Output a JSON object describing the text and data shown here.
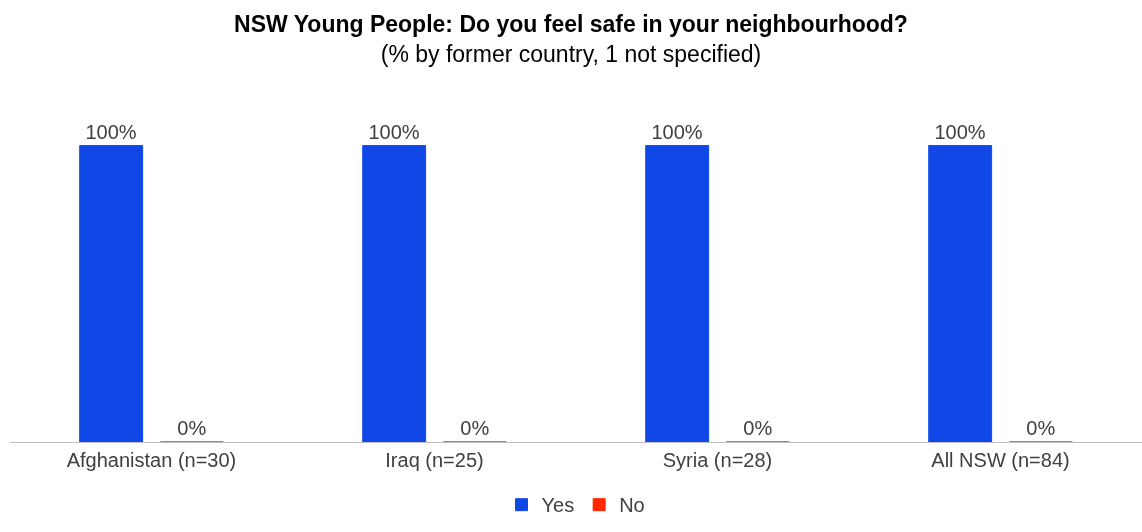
{
  "chart_data": {
    "type": "bar",
    "title": "NSW Young People: Do you feel safe in your neighbourhood?",
    "subtitle": "(% by former country, 1 not specified)",
    "categories": [
      "Afghanistan (n=30)",
      "Iraq (n=25)",
      "Syria (n=28)",
      "All NSW (n=84)"
    ],
    "tick_labels": "x",
    "series": [
      {
        "name": "Yes",
        "color": "#1048e8",
        "values": [
          100,
          100,
          100,
          100
        ],
        "value_labels": [
          "100%",
          "100%",
          "100%",
          "100%"
        ]
      },
      {
        "name": "No",
        "color": "#ff2a00",
        "values": [
          0,
          0,
          0,
          0
        ],
        "value_labels": [
          "0%",
          "0%",
          "0%",
          "0%"
        ]
      }
    ],
    "legend": "bottom"
  }
}
